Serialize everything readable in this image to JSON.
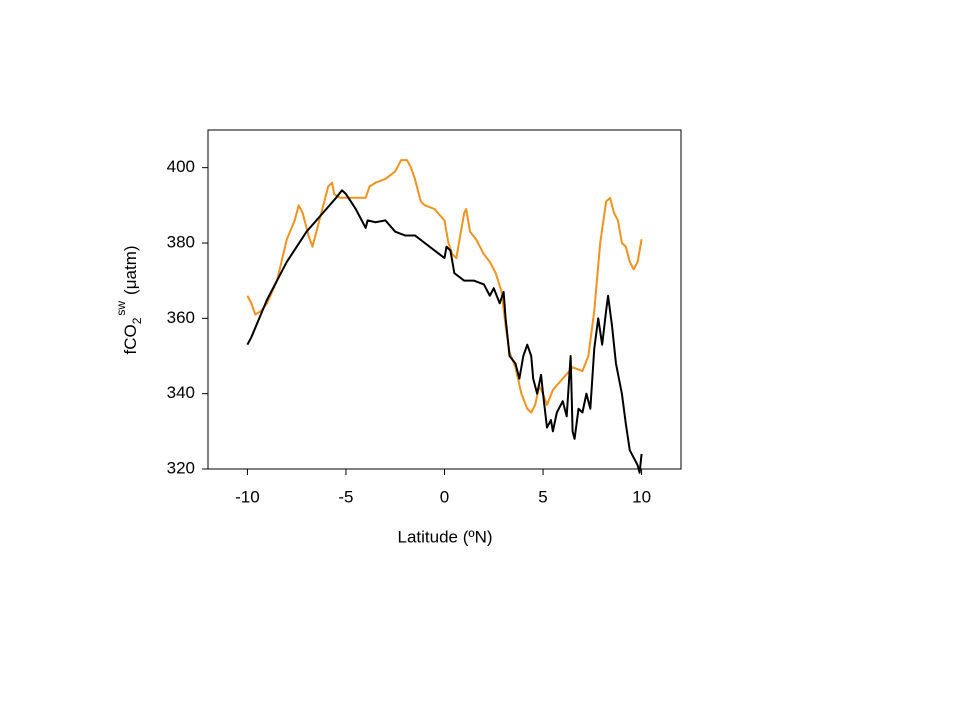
{
  "chart_data": {
    "type": "line",
    "xlabel": "Latitude (ºN)",
    "ylabel": {
      "main": "fCO",
      "sub": "2",
      "sup": "sw",
      "unit": "(μatm)"
    },
    "xlim": [
      -12,
      12
    ],
    "xticks": [
      -10,
      -5,
      0,
      5,
      10
    ],
    "ylim": [
      320,
      410
    ],
    "yticks": [
      320,
      340,
      360,
      380,
      400
    ],
    "grid": false,
    "series": [
      {
        "color": "#f0921e",
        "x": [
          -10,
          -9.8,
          -9.6,
          -9.3,
          -9,
          -8.5,
          -8,
          -7.6,
          -7.4,
          -7.2,
          -6.9,
          -6.7,
          -6.5,
          -6.2,
          -5.9,
          -5.7,
          -5.6,
          -5.3,
          -5,
          -4.5,
          -4,
          -3.8,
          -3.5,
          -3,
          -2.5,
          -2.2,
          -1.9,
          -1.7,
          -1.5,
          -1.2,
          -1,
          -0.5,
          0,
          0.2,
          0.4,
          0.6,
          0.8,
          1,
          1.1,
          1.3,
          1.6,
          2,
          2.3,
          2.6,
          2.9,
          3.1,
          3.3,
          3.6,
          3.9,
          4.2,
          4.4,
          4.6,
          4.8,
          5,
          5.2,
          5.5,
          6,
          6.5,
          7,
          7.3,
          7.6,
          7.9,
          8.2,
          8.4,
          8.6,
          8.8,
          9,
          9.2,
          9.4,
          9.6,
          9.8,
          10
        ],
        "values": [
          366,
          364,
          361,
          362,
          364,
          370,
          381,
          386,
          390,
          388,
          382,
          379,
          383,
          389,
          395,
          396,
          393,
          392,
          392,
          392,
          392,
          395,
          396,
          397,
          399,
          402,
          402,
          400,
          397,
          391,
          390,
          389,
          386,
          380,
          377,
          376,
          382,
          388,
          389,
          383,
          381,
          377,
          375,
          372,
          367,
          358,
          351,
          347,
          340,
          336,
          335,
          337,
          342,
          340,
          337,
          341,
          344,
          347,
          346,
          350,
          362,
          380,
          391,
          392,
          388,
          386,
          380,
          379,
          375,
          373,
          375,
          381
        ]
      },
      {
        "color": "#000000",
        "x": [
          -10,
          -9.8,
          -9,
          -8,
          -7,
          -6.5,
          -6,
          -5.5,
          -5.2,
          -5,
          -4.5,
          -4,
          -3.9,
          -3.5,
          -3,
          -2.5,
          -2,
          -1.5,
          -1,
          -0.5,
          0,
          0.1,
          0.3,
          0.5,
          1,
          1.5,
          2,
          2.3,
          2.5,
          2.8,
          3,
          3.1,
          3.3,
          3.6,
          3.8,
          4,
          4.2,
          4.4,
          4.5,
          4.7,
          4.9,
          5,
          5.2,
          5.4,
          5.5,
          5.7,
          6,
          6.2,
          6.4,
          6.5,
          6.6,
          6.8,
          7,
          7.2,
          7.4,
          7.6,
          7.8,
          8,
          8.2,
          8.3,
          8.5,
          8.7,
          9,
          9.2,
          9.4,
          9.6,
          9.8,
          9.9,
          10
        ],
        "values": [
          353,
          355,
          365,
          375,
          383,
          386,
          389,
          392,
          394,
          393,
          389,
          384,
          386,
          385.5,
          386,
          383,
          382,
          382,
          380,
          378,
          376,
          379,
          378,
          372,
          370,
          370,
          369,
          366,
          368,
          364,
          367,
          360,
          350,
          348,
          344,
          350,
          353,
          350,
          344,
          340,
          345,
          340,
          331,
          333,
          330,
          335,
          338,
          334,
          350,
          330,
          328,
          336,
          335,
          340,
          336,
          352,
          360,
          353,
          362,
          366,
          358,
          348,
          340,
          332,
          325,
          323,
          321,
          319,
          324
        ]
      }
    ]
  }
}
